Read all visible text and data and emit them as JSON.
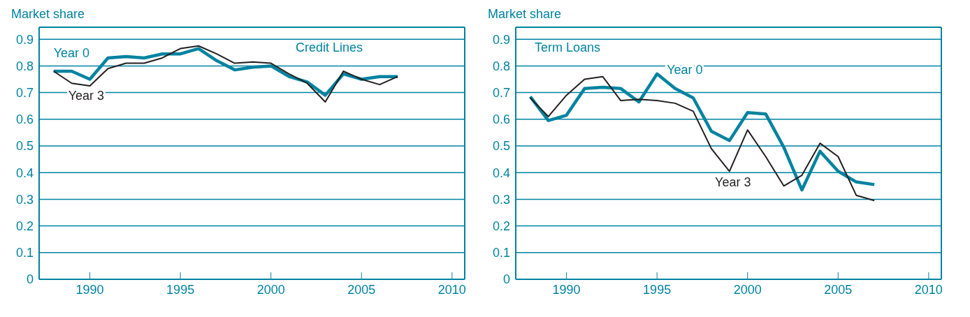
{
  "chart_data": [
    {
      "type": "line",
      "title": "Credit Lines",
      "ylabel": "Market share",
      "x": [
        1988,
        1989,
        1990,
        1991,
        1992,
        1993,
        1994,
        1995,
        1996,
        1997,
        1998,
        1999,
        2000,
        2001,
        2002,
        2003,
        2004,
        2005,
        2006,
        2007
      ],
      "xlim": [
        1987.2,
        2010.7
      ],
      "xticks": [
        1990,
        1995,
        2000,
        2005,
        2010
      ],
      "ylim": [
        0,
        0.945
      ],
      "yticks": [
        0,
        0.1,
        0.2,
        0.3,
        0.4,
        0.5,
        0.6,
        0.7,
        0.8,
        0.9
      ],
      "grid": "y",
      "marker": "none",
      "line_style": "solid",
      "series": [
        {
          "name": "Year 0",
          "color": "#0083a0",
          "values": [
            0.78,
            0.78,
            0.75,
            0.83,
            0.835,
            0.83,
            0.845,
            0.845,
            0.865,
            0.82,
            0.785,
            0.795,
            0.8,
            0.76,
            0.74,
            0.69,
            0.77,
            0.75,
            0.76,
            0.76
          ]
        },
        {
          "name": "Year 3",
          "color": "#231f20",
          "values": [
            0.78,
            0.735,
            0.725,
            0.79,
            0.81,
            0.81,
            0.83,
            0.865,
            0.875,
            0.845,
            0.81,
            0.815,
            0.81,
            0.77,
            0.735,
            0.665,
            0.78,
            0.75,
            0.73,
            0.76
          ]
        }
      ]
    },
    {
      "type": "line",
      "title": "Term Loans",
      "ylabel": "Market share",
      "x": [
        1988,
        1989,
        1990,
        1991,
        1992,
        1993,
        1994,
        1995,
        1996,
        1997,
        1998,
        1999,
        2000,
        2001,
        2002,
        2003,
        2004,
        2005,
        2006,
        2007
      ],
      "xlim": [
        1987.2,
        2010.7
      ],
      "xticks": [
        1990,
        1995,
        2000,
        2005,
        2010
      ],
      "ylim": [
        0,
        0.945
      ],
      "yticks": [
        0,
        0.1,
        0.2,
        0.3,
        0.4,
        0.5,
        0.6,
        0.7,
        0.8,
        0.9
      ],
      "grid": "y",
      "marker": "none",
      "line_style": "solid",
      "series": [
        {
          "name": "Year 0",
          "color": "#0083a0",
          "values": [
            0.685,
            0.595,
            0.615,
            0.715,
            0.72,
            0.715,
            0.665,
            0.77,
            0.715,
            0.68,
            0.555,
            0.52,
            0.625,
            0.62,
            0.495,
            0.335,
            0.48,
            0.405,
            0.365,
            0.355
          ]
        },
        {
          "name": "Year 3",
          "color": "#231f20",
          "values": [
            0.68,
            0.61,
            0.69,
            0.75,
            0.76,
            0.67,
            0.675,
            0.67,
            0.66,
            0.63,
            0.49,
            0.405,
            0.56,
            0.46,
            0.35,
            0.39,
            0.51,
            0.46,
            0.315,
            0.295
          ]
        }
      ]
    }
  ]
}
